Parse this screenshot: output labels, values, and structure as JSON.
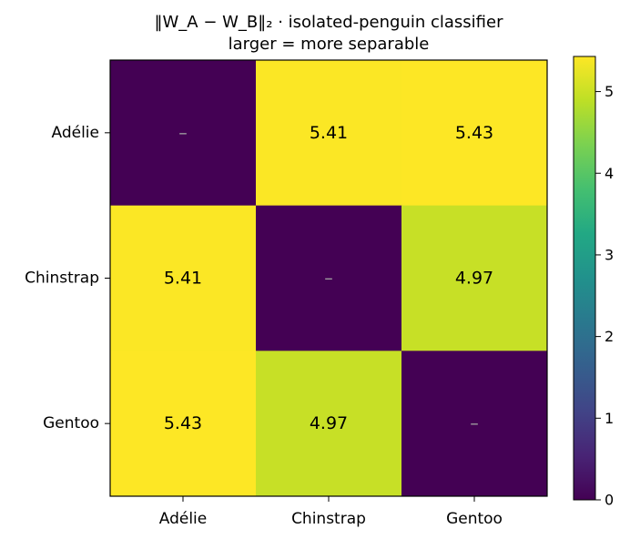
{
  "chart_data": {
    "type": "heatmap",
    "title": "‖W_A − W_B‖₂ · isolated-penguin classifier",
    "subtitle": "larger = more separable",
    "x_categories": [
      "Adélie",
      "Chinstrap",
      "Gentoo"
    ],
    "y_categories": [
      "Adélie",
      "Chinstrap",
      "Gentoo"
    ],
    "values": [
      [
        0,
        5.41,
        5.43
      ],
      [
        5.41,
        0,
        4.97
      ],
      [
        5.43,
        4.97,
        0
      ]
    ],
    "cell_labels": [
      [
        "–",
        "5.41",
        "5.43"
      ],
      [
        "5.41",
        "–",
        "4.97"
      ],
      [
        "5.43",
        "4.97",
        "–"
      ]
    ],
    "colormap": "viridis",
    "vmin": 0,
    "vmax": 5.43,
    "colorbar_ticks": [
      0,
      1,
      2,
      3,
      4,
      5
    ],
    "colorbar_tick_labels": [
      "0",
      "1",
      "2",
      "3",
      "4",
      "5"
    ],
    "diagonal_label_color": "#a0a0a0"
  }
}
